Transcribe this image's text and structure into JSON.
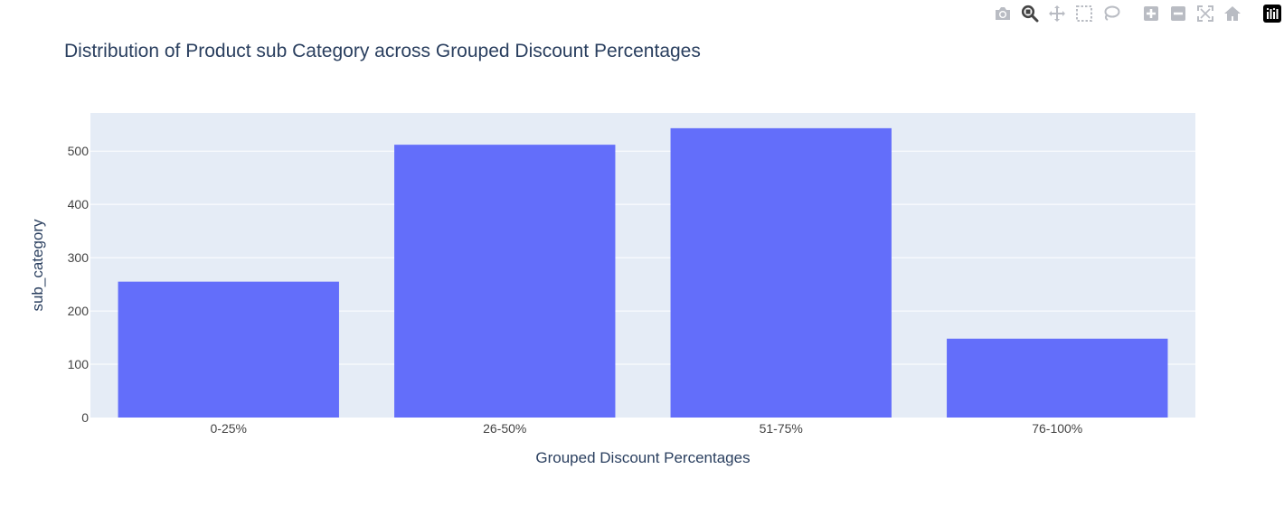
{
  "modebar": {
    "buttons": [
      "camera-icon",
      "zoom-icon",
      "pan-icon",
      "box-select-icon",
      "lasso-select-icon",
      "zoom-in-icon",
      "zoom-out-icon",
      "autoscale-icon",
      "reset-axes-icon",
      "plotly-logo-icon"
    ],
    "icon_color": "#b9bcc3",
    "active_color": "#444444"
  },
  "chart_data": {
    "type": "bar",
    "title": "Distribution of Product sub Category across Grouped Discount Percentages",
    "xlabel": "Grouped Discount Percentages",
    "ylabel": "sub_category",
    "categories": [
      "0-25%",
      "26-50%",
      "51-75%",
      "76-100%"
    ],
    "values": [
      255,
      512,
      543,
      148
    ],
    "ylim": [
      0,
      571.6
    ],
    "yticks": [
      0,
      100,
      200,
      300,
      400,
      500
    ],
    "grid": true,
    "bar_color": "#636efa",
    "plot_bg": "#e5ecf6",
    "text_color": "#2a3f5f",
    "tick_color": "#444444"
  }
}
